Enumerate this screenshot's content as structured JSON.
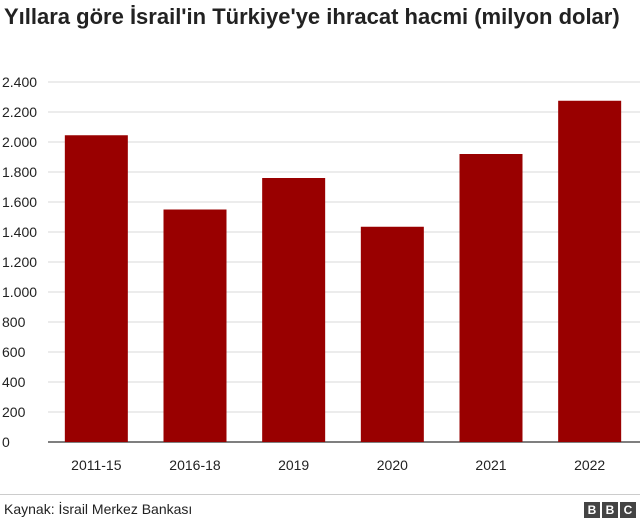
{
  "chart_data": {
    "type": "bar",
    "title": "Yıllara göre İsrail'in Türkiye'ye ihracat hacmi (milyon dolar)",
    "categories": [
      "2011-15",
      "2016-18",
      "2019",
      "2020",
      "2021",
      "2022"
    ],
    "values": [
      2045,
      1550,
      1760,
      1435,
      1920,
      2275
    ],
    "ylim": [
      0,
      2400
    ],
    "yticks": [
      0,
      200,
      400,
      600,
      800,
      1000,
      1200,
      1400,
      1600,
      1800,
      2000,
      2200,
      2400
    ],
    "ytick_labels": [
      "0",
      "200",
      "400",
      "600",
      "800",
      "1.000",
      "1.200",
      "1.400",
      "1.600",
      "1.800",
      "2.000",
      "2.200",
      "2.400"
    ],
    "grid": true,
    "bar_color": "#990000",
    "source": "Kaynak: İsrail Merkez Bankası"
  },
  "branding": {
    "logo_letters": [
      "B",
      "B",
      "C"
    ]
  }
}
